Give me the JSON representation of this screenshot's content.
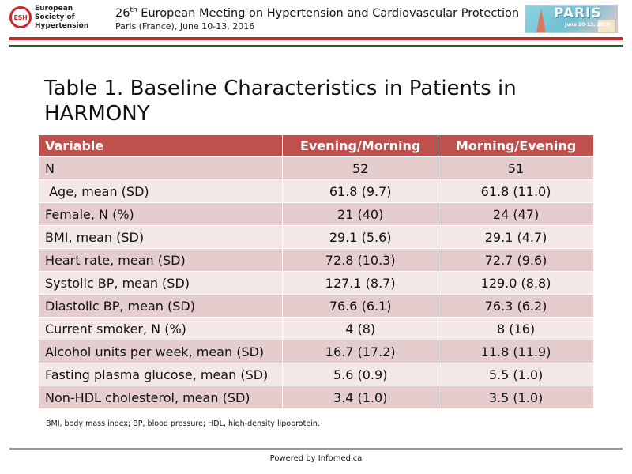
{
  "header": {
    "org_lines": [
      "European",
      "Society of",
      "Hypertension"
    ],
    "org_abbrev": "ESH",
    "meeting_ordinal": "26",
    "meeting_ordinal_suffix": "th",
    "meeting_title_rest": " European Meeting on Hypertension and Cardiovascular Protection",
    "meeting_location": "Paris (France), June 10-13, 2016",
    "banner_word": "PARIS",
    "banner_date": "June 10-13, 2016"
  },
  "title": "Table 1. Baseline Characteristics in Patients in HARMONY",
  "table": {
    "columns": [
      "Variable",
      "Evening/Morning",
      "Morning/Evening"
    ],
    "rows": [
      [
        "N",
        "52",
        "51"
      ],
      [
        " Age, mean (SD)",
        "61.8 (9.7)",
        "61.8 (11.0)"
      ],
      [
        "Female, N (%)",
        "21 (40)",
        "24 (47)"
      ],
      [
        "BMI, mean (SD)",
        "29.1 (5.6)",
        "29.1 (4.7)"
      ],
      [
        "Heart rate, mean (SD)",
        "72.8 (10.3)",
        "72.7 (9.6)"
      ],
      [
        "Systolic BP, mean (SD)",
        "127.1 (8.7)",
        "129.0 (8.8)"
      ],
      [
        "Diastolic BP, mean (SD)",
        "76.6 (6.1)",
        "76.3 (6.2)"
      ],
      [
        "Current smoker, N (%)",
        "4 (8)",
        "8 (16)"
      ],
      [
        "Alcohol units per week, mean (SD)",
        "16.7 (17.2)",
        "11.8 (11.9)"
      ],
      [
        "Fasting plasma glucose, mean (SD)",
        "5.6 (0.9)",
        "5.5 (1.0)"
      ],
      [
        "Non-HDL cholesterol, mean (SD)",
        "3.4 (1.0)",
        "3.5 (1.0)"
      ]
    ]
  },
  "footnote": "BMI, body mass index; BP, blood pressure; HDL, high-density lipoprotein.",
  "powered_by": "Powered by Infomedica",
  "colors": {
    "header_row": "#c0504d",
    "row_dark": "#e6cdcd",
    "row_light": "#f3e7e7",
    "rule_red": "#c8282e",
    "rule_green": "#2e5e2e"
  }
}
